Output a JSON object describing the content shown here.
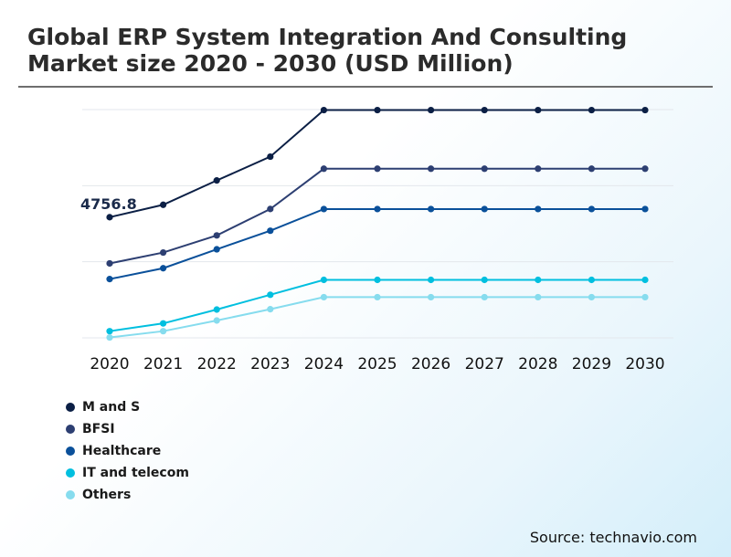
{
  "title": "Global ERP System Integration And Consulting Market size 2020 - 2030 (USD Million)",
  "source": "Source: technavio.com",
  "chart_data": {
    "type": "line",
    "title": "Global ERP System Integration And Consulting Market size 2020 - 2030 (USD Million)",
    "xlabel": "",
    "ylabel": "",
    "grid": true,
    "legend_position": "bottom-left",
    "x": [
      "2020",
      "2021",
      "2022",
      "2023",
      "2024",
      "2025",
      "2026",
      "2027",
      "2028",
      "2029",
      "2030"
    ],
    "ylim": [
      0,
      9000
    ],
    "annotations": [
      {
        "series": "M and S",
        "x": "2020",
        "label": "4756.8"
      }
    ],
    "series": [
      {
        "name": "M and S",
        "color": "#0b1f45",
        "values": [
          4756.8,
          5246,
          6205,
          7143,
          8980,
          8980,
          8980,
          8980,
          8980,
          8980,
          8980
        ]
      },
      {
        "name": "BFSI",
        "color": "#2d3f72",
        "values": [
          2935,
          3364,
          4038,
          5080,
          6668,
          6668,
          6668,
          6668,
          6668,
          6668,
          6668
        ]
      },
      {
        "name": "Healthcare",
        "color": "#0a509a",
        "values": [
          2317,
          2745,
          3491,
          4224,
          5078,
          5078,
          5078,
          5078,
          5078,
          5078,
          5078
        ]
      },
      {
        "name": "IT and telecom",
        "color": "#00bfdf",
        "values": [
          263,
          570,
          1116,
          1698,
          2286,
          2286,
          2286,
          2286,
          2286,
          2286,
          2286
        ]
      },
      {
        "name": "Others",
        "color": "#86dcee",
        "values": [
          16,
          263,
          684,
          1129,
          1605,
          1605,
          1605,
          1605,
          1605,
          1605,
          1605
        ]
      }
    ]
  }
}
